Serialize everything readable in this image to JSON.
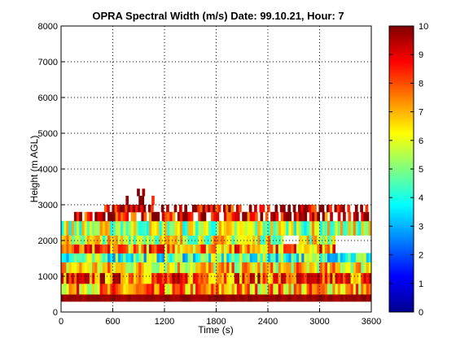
{
  "chart_data": {
    "type": "heatmap",
    "title": "OPRA Spectral Width (m/s)  Date: 99.10.21, Hour: 7",
    "xlabel": "Time (s)",
    "ylabel": "Height (m AGL)",
    "xlim": [
      0,
      3600
    ],
    "ylim": [
      0,
      8000
    ],
    "xticks": [
      0,
      600,
      1200,
      1800,
      2400,
      3000,
      3600
    ],
    "yticks": [
      0,
      1000,
      2000,
      3000,
      4000,
      5000,
      6000,
      7000,
      8000
    ],
    "grid": true,
    "colormap": "jet",
    "colorbar": {
      "range": [
        0,
        10
      ],
      "ticks": [
        0,
        1,
        2,
        3,
        4,
        5,
        6,
        7,
        8,
        9,
        10
      ]
    },
    "x_step_s": 30,
    "height_bands_m": [
      {
        "bottom": 300,
        "top": 500,
        "value": 10
      },
      {
        "bottom": 500,
        "top": 800,
        "value": 7
      },
      {
        "bottom": 800,
        "top": 1100,
        "value": 8
      },
      {
        "bottom": 1100,
        "top": 1400,
        "value": 6.5
      },
      {
        "bottom": 1400,
        "top": 1650,
        "value": 4.5
      },
      {
        "bottom": 1650,
        "top": 1900,
        "value": 7.5
      },
      {
        "bottom": 1900,
        "top": 2150,
        "value": 6
      },
      {
        "bottom": 2150,
        "top": 2550,
        "value": 5.5
      },
      {
        "bottom": 2550,
        "top": 2800,
        "value": 9
      },
      {
        "bottom": 2800,
        "top": 3000,
        "value": 9.5
      },
      {
        "bottom": 3000,
        "top": 3250,
        "value": 10
      },
      {
        "bottom": 3250,
        "top": 3450,
        "value": 10
      }
    ],
    "band_extent_s": [
      {
        "band": 8,
        "from": 150,
        "to": 3600
      },
      {
        "band": 9,
        "from": 500,
        "to": 3580
      },
      {
        "band": 10,
        "from": 750,
        "to": 1100
      },
      {
        "band": 11,
        "from": 850,
        "to": 1000
      }
    ],
    "missing_patches": [
      {
        "x": [
          3180,
          3600
        ],
        "y": [
          1650,
          2150
        ]
      },
      {
        "x": [
          2580,
          2750
        ],
        "y": [
          1800,
          2150
        ]
      }
    ]
  }
}
